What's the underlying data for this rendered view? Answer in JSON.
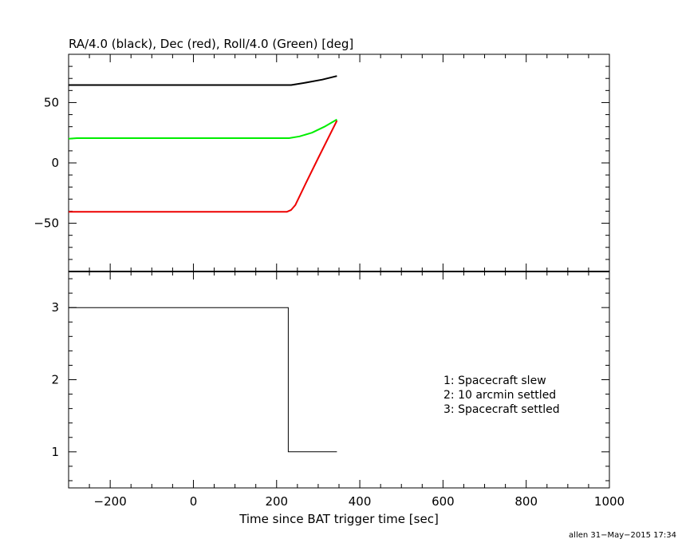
{
  "chart_data": [
    {
      "type": "line",
      "title": "RA/4.0 (black), Dec (red), Roll/4.0 (Green) [deg]",
      "xlabel": "",
      "ylabel": "",
      "xlim": [
        -300,
        1000
      ],
      "ylim": [
        -90,
        90
      ],
      "yticks": [
        "50",
        "0",
        "−50"
      ],
      "ytick_values": [
        50,
        0,
        -50
      ],
      "grid": false,
      "series": [
        {
          "color": "#000000",
          "x": [
            -300,
            235,
            270,
            310,
            345
          ],
          "y": [
            64.5,
            64.5,
            66.5,
            69,
            72
          ]
        },
        {
          "color": "#00ee00",
          "x": [
            -300,
            -280,
            230,
            255,
            285,
            315,
            345
          ],
          "y": [
            20,
            20.5,
            20.5,
            22,
            25,
            30,
            36
          ]
        },
        {
          "color": "#ee0000",
          "x": [
            -300,
            225,
            235,
            245,
            270,
            300,
            345
          ],
          "y": [
            -40.5,
            -40.5,
            -39,
            -35,
            -17,
            4,
            35
          ]
        }
      ]
    },
    {
      "type": "line",
      "xlabel": "Time since BAT trigger time [sec]",
      "xlim": [
        -300,
        1000
      ],
      "ylim": [
        0.5,
        3.5
      ],
      "xticks": [
        "−200",
        "0",
        "200",
        "400",
        "600",
        "800",
        "1000"
      ],
      "xtick_values": [
        -200,
        0,
        200,
        400,
        600,
        800,
        1000
      ],
      "yticks": [
        "3",
        "2",
        "1"
      ],
      "ytick_values": [
        3,
        2,
        1
      ],
      "grid": false,
      "series": [
        {
          "color": "#000000",
          "x": [
            -300,
            228,
            228,
            345
          ],
          "y": [
            3,
            3,
            1,
            1
          ]
        }
      ],
      "annotations": [
        "1: Spacecraft slew",
        "2: 10 arcmin settled",
        "3: Spacecraft settled"
      ]
    }
  ],
  "footer": "allen 31−May−2015 17:34"
}
